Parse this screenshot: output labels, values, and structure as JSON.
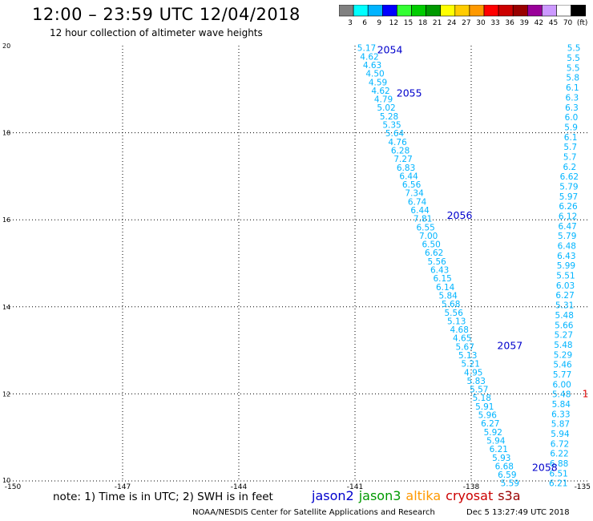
{
  "header": {
    "title": "12:00 – 23:59 UTC 12/04/2018",
    "subtitle": "12 hour collection of altimeter wave heights"
  },
  "colorbar": {
    "labels": [
      "3",
      "6",
      "9",
      "12",
      "15",
      "18",
      "21",
      "24",
      "27",
      "30",
      "33",
      "36",
      "39",
      "42",
      "45",
      "70",
      "(ft)"
    ],
    "colors": [
      "#808080",
      "#00ffff",
      "#00b4ff",
      "#0000ff",
      "#33ff33",
      "#00cc00",
      "#009900",
      "#ffff00",
      "#ffcc00",
      "#ff9900",
      "#ff0000",
      "#cc0000",
      "#990000",
      "#990099",
      "#cc99ff",
      "#ffffff",
      "#000000"
    ]
  },
  "chart_data": {
    "type": "scatter",
    "xlim": [
      -150,
      -135
    ],
    "ylim": [
      10,
      20
    ],
    "xticks": [
      "-150",
      "-147",
      "-144",
      "-141",
      "-138",
      "-135"
    ],
    "yticks": [
      "10",
      "12",
      "14",
      "16",
      "18",
      "20"
    ],
    "grid": true,
    "value_color": "#00b4ff",
    "pass_color": "#0000cc",
    "tracks": [
      {
        "start": [
          -140.7,
          19.95
        ],
        "end": [
          -137.0,
          9.95
        ],
        "values": [
          "5.17",
          "4.62",
          "4.63",
          "4.50",
          "4.59",
          "4.62",
          "4.79",
          "5.02",
          "5.28",
          "5.35",
          "5.64",
          "4.76",
          "6.28",
          "7.27",
          "6.83",
          "6.44",
          "6.56",
          "7.34",
          "6.74",
          "6.44",
          "7.81",
          "6.55",
          "7.00",
          "6.50",
          "6.62",
          "5.56",
          "6.43",
          "6.15",
          "6.14",
          "5.84",
          "5.68",
          "5.56",
          "5.13",
          "4.68",
          "4.65",
          "5.67",
          "5.13",
          "5.21",
          "4.95",
          "5.83",
          "5.57",
          "5.18",
          "5.91",
          "5.96",
          "6.27",
          "5.92",
          "5.94",
          "6.21",
          "5.93",
          "6.68",
          "6.59",
          "5.59"
        ]
      },
      {
        "start": [
          -135.35,
          19.95
        ],
        "end": [
          -135.75,
          9.95
        ],
        "values": [
          "5.5",
          "5.5",
          "5.5",
          "5.8",
          "6.1",
          "6.3",
          "6.3",
          "6.0",
          "5.9",
          "6.1",
          "5.7",
          "5.7",
          "6.2",
          "6.62",
          "5.79",
          "5.97",
          "6.26",
          "6.12",
          "6.47",
          "5.79",
          "6.48",
          "6.43",
          "5.99",
          "5.51",
          "6.03",
          "6.27",
          "5.31",
          "5.48",
          "5.66",
          "5.27",
          "5.48",
          "5.29",
          "5.46",
          "5.77",
          "6.00",
          "5.48",
          "5.84",
          "6.33",
          "5.87",
          "5.94",
          "6.72",
          "6.22",
          "6.88",
          "6.51",
          "6.21"
        ]
      }
    ],
    "passes": [
      {
        "label": "2054",
        "x": -140.1,
        "y": 19.9
      },
      {
        "label": "2055",
        "x": -139.6,
        "y": 18.9
      },
      {
        "label": "2056",
        "x": -138.3,
        "y": 16.1
      },
      {
        "label": "2057",
        "x": -137.0,
        "y": 13.1
      },
      {
        "label": "2058",
        "x": -136.1,
        "y": 10.3
      }
    ],
    "edge_labels": [
      {
        "label": "1",
        "x": -135.05,
        "y": 12.0,
        "color": "#dd0000"
      }
    ]
  },
  "footer": {
    "note": "note: 1) Time is in UTC; 2) SWH is in feet",
    "satellites": [
      {
        "name": "jason2",
        "color": "#0000cc"
      },
      {
        "name": "jason3",
        "color": "#009900"
      },
      {
        "name": "altika",
        "color": "#ff9900"
      },
      {
        "name": "cryosat",
        "color": "#cc0000"
      },
      {
        "name": "s3a",
        "color": "#990000"
      }
    ],
    "credit": "NOAA/NESDIS Center for Satellite Applications and Research",
    "timestamp": "Dec  5 13:27:49 UTC 2018"
  }
}
